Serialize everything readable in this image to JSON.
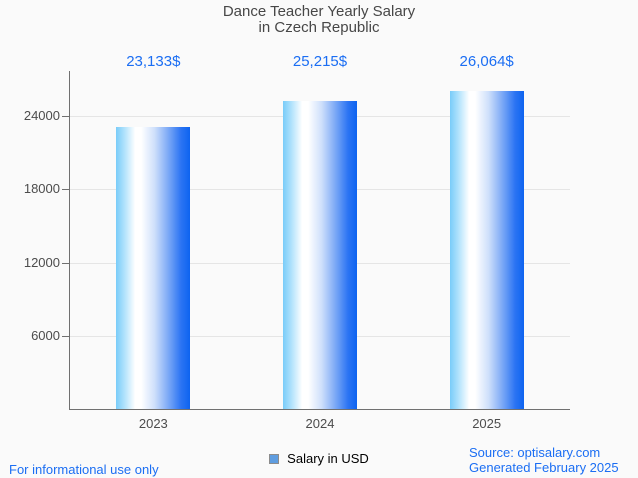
{
  "title": {
    "line1": "Dance Teacher Yearly Salary",
    "line2": "in Czech Republic"
  },
  "chart_data": {
    "type": "bar",
    "categories": [
      "2023",
      "2024",
      "2025"
    ],
    "values": [
      23133,
      25215,
      26064
    ],
    "value_labels": [
      "23,133$",
      "25,215$",
      "26,064$"
    ],
    "series_name": "Salary in USD",
    "title": "Dance Teacher Yearly Salary in Czech Republic",
    "xlabel": "",
    "ylabel": "",
    "ylim": [
      0,
      27700
    ],
    "yticks": [
      6000,
      12000,
      18000,
      24000
    ],
    "grid": "horizontal",
    "legend_position": "bottom"
  },
  "legend": {
    "swatch_fill": "#5f9de0",
    "swatch_border": "#8c8c8c"
  },
  "footer": {
    "left_note": "For informational use only",
    "source_line1": "Source: optisalary.com",
    "source_line2": "Generated February 2025"
  },
  "colors": {
    "accent_blue": "#1b6ef3",
    "title_text": "#474747",
    "axis_text": "#4c4c4c",
    "axis_line": "#707070",
    "gridline": "#e5e5e5",
    "background": "#fafafa",
    "bar_gradient": [
      "#79ccf9",
      "#b3e3fc",
      "#ffffff",
      "#ffffff",
      "#cfe0fb",
      "#7fabf6",
      "#2b74f3",
      "#0d63f0"
    ],
    "bar_gradient_stops": [
      0,
      12,
      26,
      34,
      52,
      70,
      88,
      100
    ]
  }
}
